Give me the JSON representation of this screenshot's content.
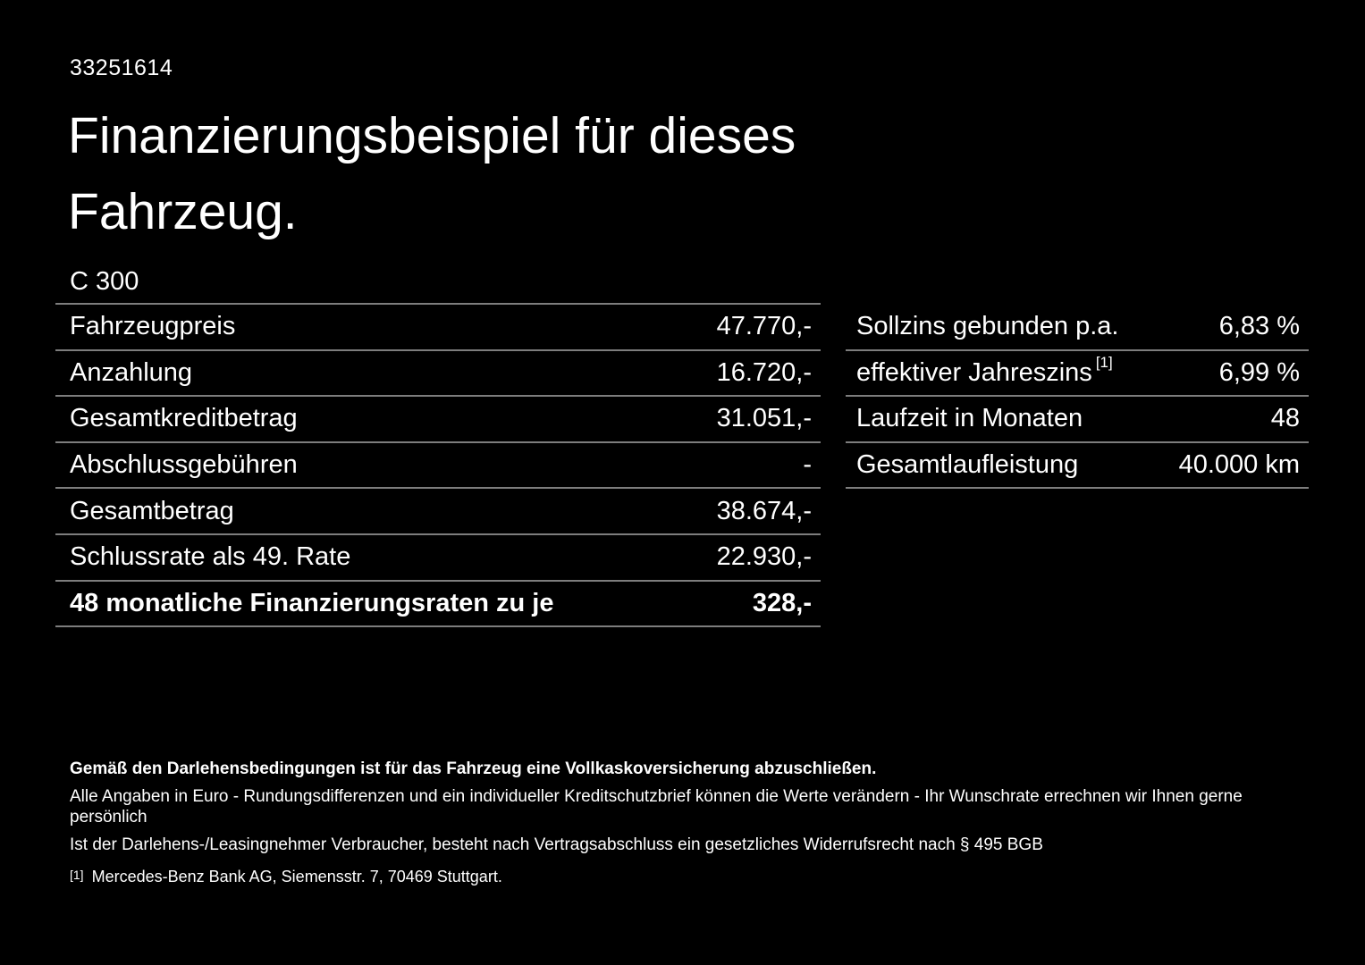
{
  "page": {
    "background_color": "#000000",
    "text_color": "#ffffff",
    "divider_color": "#7d7d7d"
  },
  "header": {
    "document_number": "33251614",
    "title": "Finanzierungsbeispiel für dieses Fahrzeug."
  },
  "vehicle": {
    "model": "C 300"
  },
  "finance_table": {
    "rows": [
      {
        "label": "Fahrzeugpreis",
        "value": "47.770,-"
      },
      {
        "label": "Anzahlung",
        "value": "16.720,-"
      },
      {
        "label": "Gesamtkreditbetrag",
        "value": "31.051,-"
      },
      {
        "label": "Abschlussgebühren",
        "value": "-"
      },
      {
        "label": "Gesamtbetrag",
        "value": "38.674,-"
      },
      {
        "label": "Schlussrate als 49. Rate",
        "value": "22.930,-"
      },
      {
        "label": "48 monatliche Finanzierungsraten zu je",
        "value": "328,-"
      }
    ]
  },
  "terms_table": {
    "rows": [
      {
        "label": "Sollzins gebunden p.a.",
        "footnote_marker": "",
        "value": "6,83 %"
      },
      {
        "label": "effektiver Jahreszins",
        "footnote_marker": "[1]",
        "value": "6,99 %"
      },
      {
        "label": "Laufzeit in Monaten",
        "footnote_marker": "",
        "value": "48"
      },
      {
        "label": "Gesamtlaufleistung",
        "footnote_marker": "",
        "value": "40.000 km"
      }
    ]
  },
  "footer": {
    "insurance_notice": "Gemäß den Darlehensbedingungen ist für das Fahrzeug eine Vollkaskoversicherung abzuschließen.",
    "disclaimer_line1": "Alle Angaben in Euro - Rundungsdifferenzen und ein individueller Kreditschutzbrief können die Werte verändern - Ihr Wunschrate errechnen wir Ihnen gerne persönlich",
    "disclaimer_line2": "Ist der Darlehens-/Leasingnehmer Verbraucher, besteht nach Vertragsabschluss ein gesetzliches Widerrufsrecht nach § 495 BGB",
    "footnote_marker": "[1]",
    "footnote_text": "Mercedes-Benz Bank AG, Siemensstr. 7, 70469 Stuttgart."
  }
}
